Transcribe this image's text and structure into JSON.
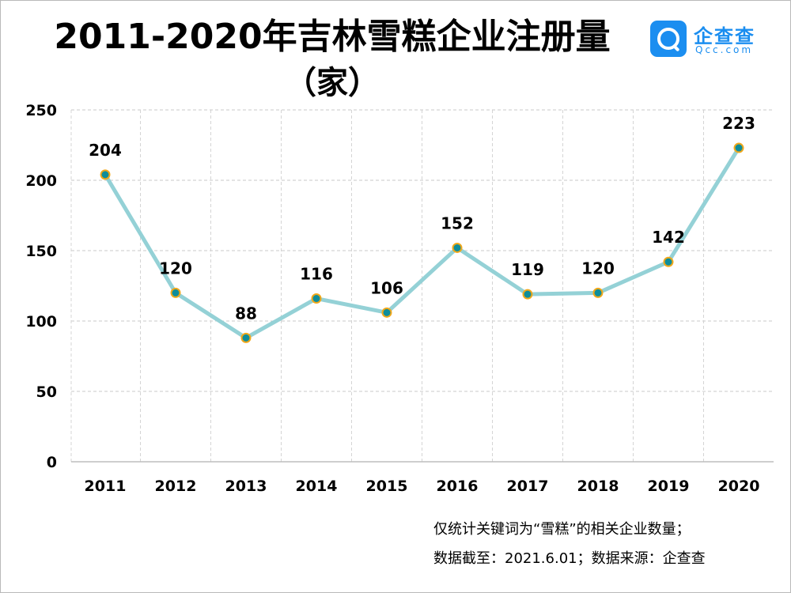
{
  "title": {
    "line1": "2011-2020年吉林雪糕企业注册量",
    "line2": "（家）"
  },
  "logo": {
    "icon": "qcc-magnifier-icon",
    "name": "企查查",
    "sub": "Qcc.com",
    "color": "#1b8ef0"
  },
  "footnote": {
    "line1": "仅统计关键词为“雪糕”的相关企业数量；",
    "line2": "数据截至：2021.6.01；数据来源：企查查"
  },
  "chart_data": {
    "type": "line",
    "x": [
      "2011",
      "2012",
      "2013",
      "2014",
      "2015",
      "2016",
      "2017",
      "2018",
      "2019",
      "2020"
    ],
    "values": [
      204,
      120,
      88,
      116,
      106,
      152,
      119,
      120,
      142,
      223
    ],
    "title": "2011-2020年吉林雪糕企业注册量",
    "ylim": [
      0,
      250
    ],
    "yticks": [
      0,
      50,
      100,
      150,
      200,
      250
    ],
    "grid": true,
    "line_color": "#94d1d6",
    "marker_fill": "#0e8d9a",
    "marker_edge": "#f0a81b"
  }
}
